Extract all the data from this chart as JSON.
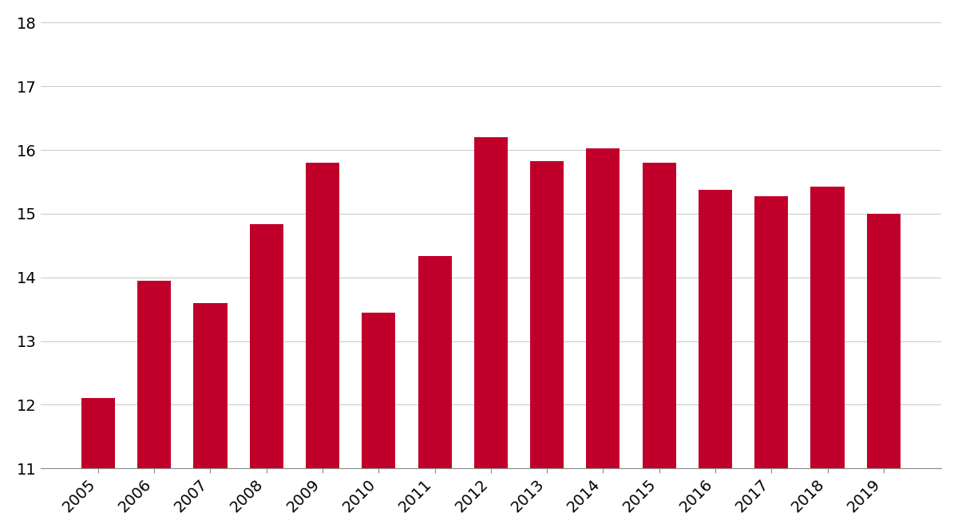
{
  "years": [
    2005,
    2006,
    2007,
    2008,
    2009,
    2010,
    2011,
    2012,
    2013,
    2014,
    2015,
    2016,
    2017,
    2018,
    2019
  ],
  "values": [
    12.1,
    13.95,
    13.6,
    14.83,
    15.8,
    13.45,
    14.33,
    16.2,
    15.83,
    16.03,
    15.8,
    15.37,
    15.28,
    15.43,
    15.0
  ],
  "bar_color": "#c0002a",
  "background_color": "#ffffff",
  "ylim": [
    11,
    18
  ],
  "yticks": [
    11,
    12,
    13,
    14,
    15,
    16,
    17,
    18
  ],
  "grid_color": "#cccccc",
  "bar_width": 0.6,
  "tick_fontsize": 14,
  "spine_color": "#888888"
}
